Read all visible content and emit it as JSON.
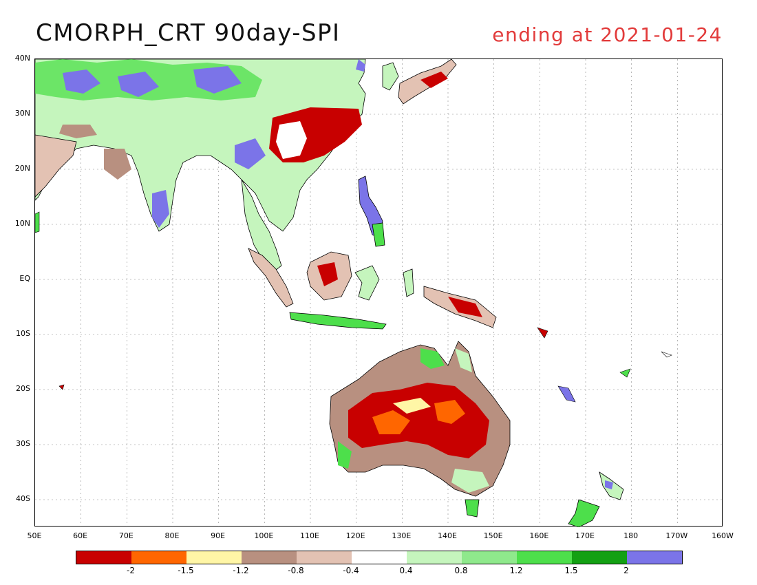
{
  "title": {
    "left": "CMORPH_CRT 90day-SPI",
    "right": "ending at 2021-01-24",
    "right_color": "#e23b3b"
  },
  "map": {
    "lat_labels": [
      "40N",
      "30N",
      "20N",
      "10N",
      "EQ",
      "10S",
      "20S",
      "30S",
      "40S"
    ],
    "lon_labels": [
      "50E",
      "60E",
      "70E",
      "80E",
      "90E",
      "100E",
      "110E",
      "120E",
      "130E",
      "140E",
      "150E",
      "160E",
      "170E",
      "180",
      "170W",
      "160W"
    ],
    "gridlines": true
  },
  "colorbar": {
    "colors": [
      "#c80000",
      "#ff6600",
      "#fff6a6",
      "#b89080",
      "#e3c2b3",
      "#ffffff",
      "#c5f5bd",
      "#8fe98c",
      "#4ddf4b",
      "#13a013",
      "#7b74e8"
    ],
    "labels": [
      "-2",
      "-1.5",
      "-1.2",
      "-0.8",
      "-0.4",
      "0.4",
      "0.8",
      "1.2",
      "1.5",
      "2"
    ]
  }
}
